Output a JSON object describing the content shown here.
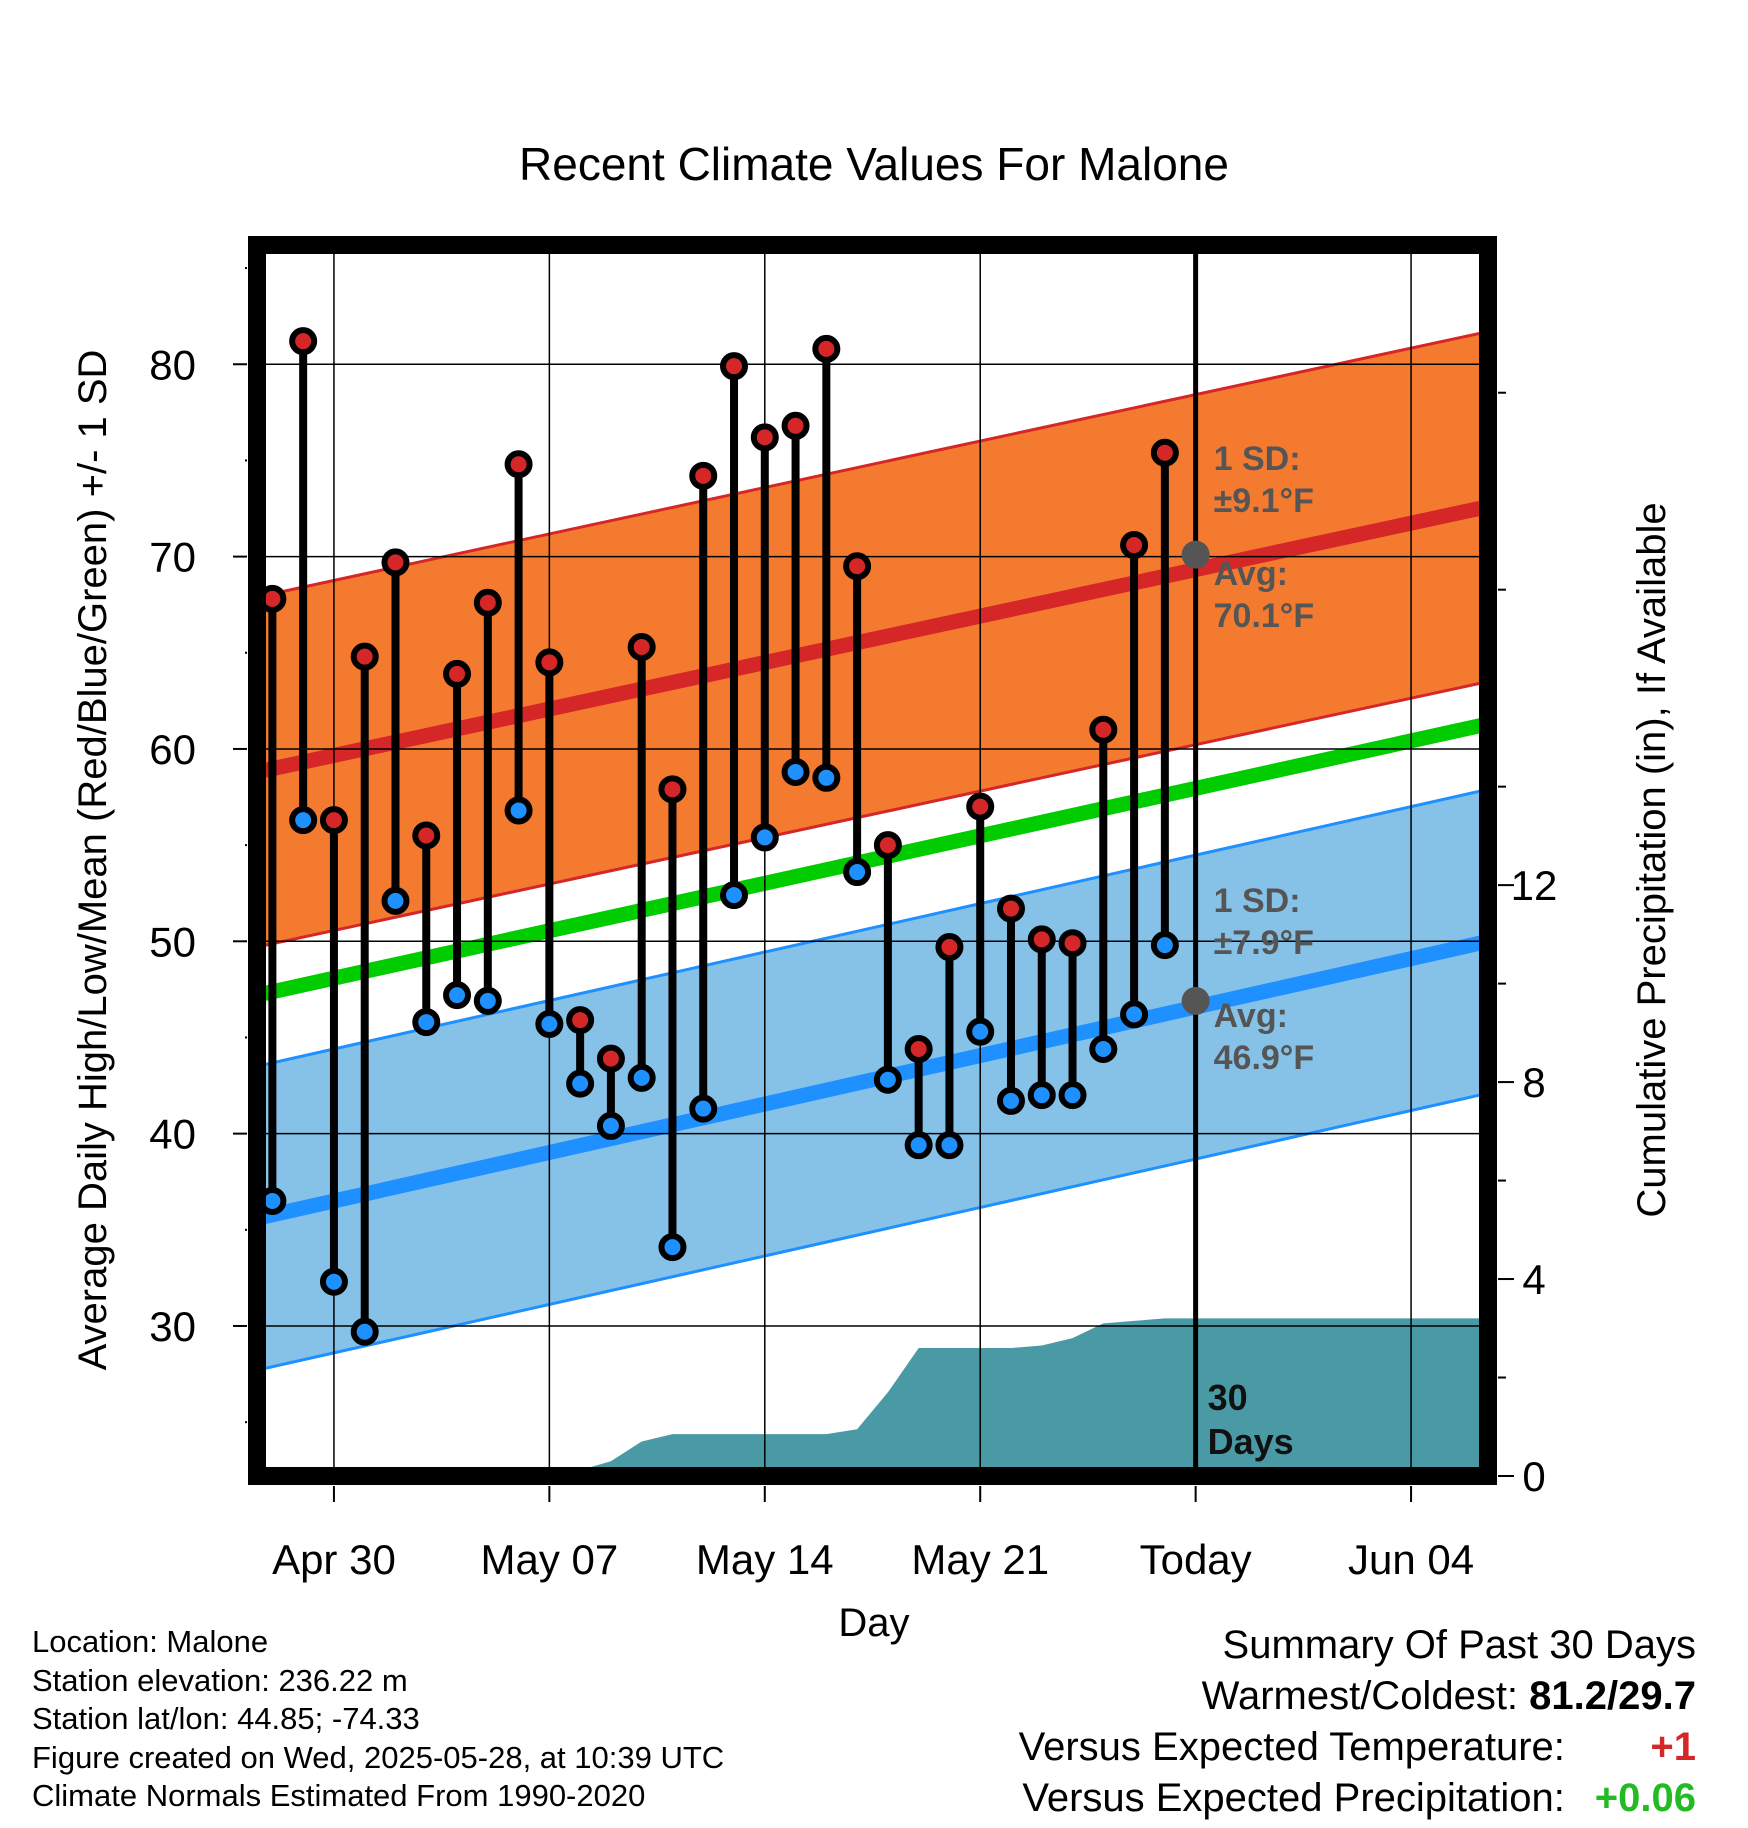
{
  "chart_data": {
    "type": "line",
    "title": "Recent Climate Values For Malone",
    "xlabel": "Day",
    "ylabel": "Average Daily High/Low/Mean (Red/Blue/Green) +/- 1 SD",
    "y2label": "Cumulative Precipitation (in), If Available",
    "x_tick_labels": [
      "Apr 30",
      "May 07",
      "May 14",
      "May 21",
      "Today",
      "Jun 04"
    ],
    "ylim": [
      22.2,
      86.2
    ],
    "y_ticks": [
      30,
      40,
      50,
      60,
      70,
      80
    ],
    "y2lim": [
      0,
      25
    ],
    "y2_ticks": [
      0,
      4,
      8,
      12
    ],
    "x_days_range": [
      -30.5,
      9.5
    ],
    "x_tick_days": [
      -28,
      -21,
      -14,
      -7,
      0,
      7
    ],
    "today_marker_label": [
      "30",
      "Days"
    ],
    "normal_high": {
      "start": 58.8,
      "end": 72.6,
      "sd": 9.1,
      "avg_today": 70.1,
      "sd_label": [
        "1 SD:",
        "±9.1°F"
      ],
      "avg_label": [
        "Avg:",
        "70.1°F"
      ],
      "color": "#d62728",
      "band_color": "#f47a30"
    },
    "normal_low": {
      "start": 35.6,
      "end": 50.0,
      "sd": 7.9,
      "avg_today": 46.9,
      "sd_label": [
        "1 SD:",
        "±7.9°F"
      ],
      "avg_label": [
        "Avg:",
        "46.9°F"
      ],
      "color": "#1e90ff",
      "band_color": "#86c2e8"
    },
    "normal_mean": {
      "start": 47.2,
      "end": 61.3,
      "color": "#00cc00"
    },
    "daily": {
      "day": [
        -30,
        -29,
        -28,
        -27,
        -26,
        -25,
        -24,
        -23,
        -22,
        -21,
        -20,
        -19,
        -18,
        -17,
        -16,
        -15,
        -14,
        -13,
        -12,
        -11,
        -10,
        -9,
        -8,
        -7,
        -6,
        -5,
        -4,
        -3,
        -2,
        -1
      ],
      "high": [
        67.8,
        81.2,
        56.3,
        64.8,
        69.7,
        55.5,
        63.9,
        67.6,
        74.8,
        64.5,
        45.9,
        43.9,
        65.3,
        57.9,
        74.2,
        79.9,
        76.2,
        76.8,
        80.8,
        69.5,
        55.0,
        44.4,
        49.7,
        57.0,
        51.7,
        50.1,
        49.9,
        61.0,
        70.6,
        75.4
      ],
      "low": [
        36.5,
        56.3,
        32.3,
        29.7,
        52.1,
        45.8,
        47.2,
        46.9,
        56.8,
        45.7,
        42.6,
        40.4,
        42.9,
        34.1,
        41.3,
        52.4,
        55.4,
        58.8,
        58.5,
        53.6,
        42.8,
        39.4,
        39.4,
        45.3,
        41.7,
        42.0,
        42.0,
        44.4,
        46.2,
        49.8
      ],
      "high_color": "#d62728",
      "low_color": "#1e90ff"
    },
    "precip_cumulative": {
      "day": [
        -30.5,
        -25,
        -23,
        -20,
        -19,
        -18,
        -17,
        -16,
        -15,
        -14,
        -13,
        -12,
        -11,
        -10,
        -9,
        -8,
        -7,
        -6,
        -5,
        -4,
        -3,
        -2,
        -1,
        0,
        9.5
      ],
      "value": [
        0.0,
        0.05,
        0.08,
        0.12,
        0.3,
        0.7,
        0.85,
        0.85,
        0.85,
        0.85,
        0.85,
        0.85,
        0.95,
        1.7,
        2.6,
        2.6,
        2.6,
        2.6,
        2.65,
        2.8,
        3.1,
        3.15,
        3.2,
        3.2,
        3.2
      ],
      "color": "#4a9aa5"
    },
    "grid": true
  },
  "info": {
    "location": "Location: Malone",
    "elevation": "Station elevation: 236.22 m",
    "latlon": "Station lat/lon: 44.85; -74.33",
    "created": "Figure created on Wed, 2025-05-28, at 10:39 UTC",
    "normals": "Climate Normals Estimated From 1990-2020"
  },
  "summary": {
    "title": "Summary Of Past 30 Days",
    "warm_cold_label": "Warmest/Coldest:",
    "warm_cold_value": "81.2/29.7",
    "temp_label": "Versus Expected Temperature:",
    "temp_value": "+1",
    "temp_color": "#d62728",
    "precip_label": "Versus Expected Precipitation:",
    "precip_value": "+0.06",
    "precip_color": "#22bb22"
  }
}
